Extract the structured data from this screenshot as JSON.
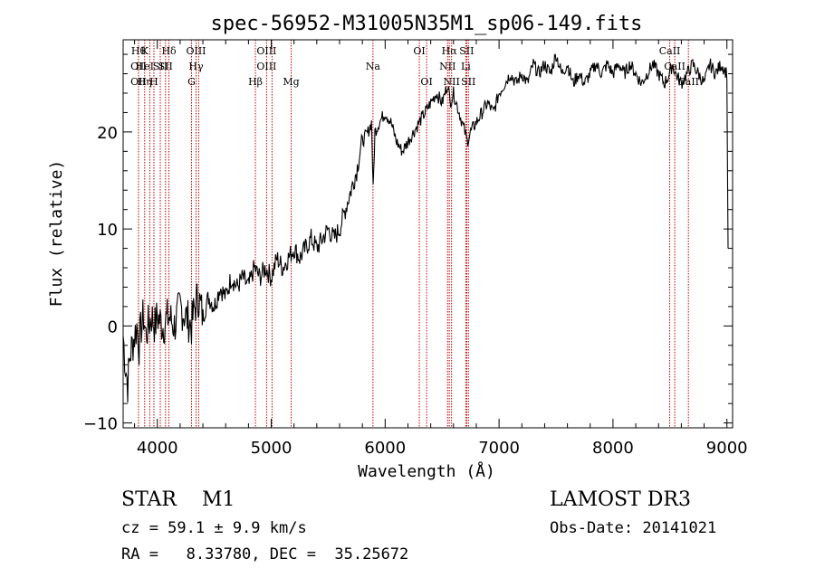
{
  "colors": {
    "spectrum": "#000000",
    "line_markers": "#c00000",
    "axes": "#000000"
  },
  "chart_data": {
    "type": "line",
    "title": "spec-56952-M31005N35M1_sp06-149.fits",
    "xlabel": "Wavelength (Å)",
    "ylabel": "Flux (relative)",
    "xlim": [
      3700,
      9050
    ],
    "ylim": [
      -10.5,
      29.5
    ],
    "xticks": [
      4000,
      5000,
      6000,
      7000,
      8000,
      9000
    ],
    "yticks": [
      -10,
      0,
      10,
      20
    ],
    "grid": false,
    "series": [
      {
        "x": [
          3700,
          3720,
          3740,
          3760,
          3780,
          3800,
          3820,
          3840,
          3860,
          3880,
          3900,
          3920,
          3950,
          3980,
          4000,
          4050,
          4100,
          4150,
          4200,
          4250,
          4300,
          4330,
          4360,
          4400,
          4450,
          4500,
          4550,
          4600,
          4650,
          4700,
          4750,
          4800,
          4850,
          4900,
          4950,
          5000,
          5050,
          5100,
          5150,
          5200,
          5250,
          5300,
          5350,
          5400,
          5450,
          5500,
          5550,
          5600,
          5650,
          5700,
          5750,
          5780,
          5800,
          5850,
          5880,
          5895,
          5910,
          5950,
          6000,
          6050,
          6100,
          6150,
          6200,
          6250,
          6300,
          6350,
          6400,
          6450,
          6500,
          6550,
          6570,
          6600,
          6650,
          6700,
          6720,
          6750,
          6800,
          6850,
          6900,
          6950,
          7000,
          7050,
          7100,
          7150,
          7200,
          7250,
          7300,
          7350,
          7400,
          7450,
          7500,
          7550,
          7600,
          7650,
          7700,
          7750,
          7800,
          7850,
          7900,
          7950,
          8000,
          8050,
          8100,
          8150,
          8200,
          8250,
          8300,
          8350,
          8400,
          8450,
          8500,
          8520,
          8550,
          8600,
          8650,
          8700,
          8750,
          8800,
          8850,
          8900,
          8950,
          9000,
          9010
        ],
        "y": [
          -1,
          -4,
          -6,
          -3,
          -2,
          -1,
          0,
          -2,
          0,
          1,
          -1,
          0,
          1,
          0,
          1,
          0,
          1,
          0,
          2,
          1,
          0,
          2,
          3,
          1,
          3,
          2,
          4,
          3,
          5,
          4,
          5,
          4,
          6,
          5,
          6,
          5,
          7,
          6,
          7,
          8,
          7,
          8,
          9,
          8,
          9,
          10,
          9,
          10,
          12,
          14,
          16,
          18,
          19,
          20,
          21,
          14,
          20,
          21,
          22,
          21,
          19,
          18,
          19,
          20,
          21,
          22,
          23,
          24,
          23,
          25,
          23,
          24,
          22,
          20,
          19,
          20,
          21,
          22,
          23,
          22,
          24,
          25,
          26,
          25,
          26,
          25,
          27,
          26,
          27,
          26,
          28,
          26,
          27,
          25,
          26,
          25,
          26,
          27,
          26,
          27,
          26,
          27,
          26,
          27,
          26,
          25,
          26,
          27,
          26,
          25,
          26,
          27,
          26,
          25,
          26,
          27,
          26,
          25,
          27,
          26,
          27,
          26,
          8
        ]
      }
    ],
    "lines": [
      {
        "x": 3835,
        "labels": [
          "Hθ",
          "OII",
          "OII"
        ]
      },
      {
        "x": 3889,
        "labels": [
          "K",
          "HeI",
          "Hη"
        ]
      },
      {
        "x": 3934,
        "labels": [
          "",
          "",
          ""
        ]
      },
      {
        "x": 3970,
        "labels": [
          "",
          "",
          "H"
        ]
      },
      {
        "x": 4026,
        "labels": [
          "",
          "SII",
          ""
        ]
      },
      {
        "x": 4072,
        "labels": [
          "",
          "SII",
          ""
        ]
      },
      {
        "x": 4102,
        "labels": [
          "Hδ",
          "",
          ""
        ]
      },
      {
        "x": 4300,
        "labels": [
          "",
          "",
          "G"
        ]
      },
      {
        "x": 4340,
        "labels": [
          "OIII",
          "Hγ",
          ""
        ]
      },
      {
        "x": 4363,
        "labels": [
          "",
          "",
          ""
        ]
      },
      {
        "x": 4861,
        "labels": [
          "",
          "",
          "Hβ"
        ]
      },
      {
        "x": 4959,
        "labels": [
          "OIII",
          "OIII",
          ""
        ]
      },
      {
        "x": 5007,
        "labels": [
          "",
          "",
          ""
        ]
      },
      {
        "x": 5175,
        "labels": [
          "",
          "",
          "Mg"
        ]
      },
      {
        "x": 5893,
        "labels": [
          "",
          "Na",
          ""
        ]
      },
      {
        "x": 6300,
        "labels": [
          "OI",
          "",
          ""
        ]
      },
      {
        "x": 6364,
        "labels": [
          "",
          "",
          "OI"
        ]
      },
      {
        "x": 6548,
        "labels": [
          "",
          "NII",
          ""
        ]
      },
      {
        "x": 6563,
        "labels": [
          "Hα",
          "",
          ""
        ]
      },
      {
        "x": 6583,
        "labels": [
          "",
          "",
          "NII"
        ]
      },
      {
        "x": 6708,
        "labels": [
          "",
          "Li",
          ""
        ]
      },
      {
        "x": 6716,
        "labels": [
          "SII",
          "",
          ""
        ]
      },
      {
        "x": 6731,
        "labels": [
          "",
          "",
          "SII"
        ]
      },
      {
        "x": 8498,
        "labels": [
          "CaII",
          "",
          ""
        ]
      },
      {
        "x": 8542,
        "labels": [
          "",
          "CaII",
          ""
        ]
      },
      {
        "x": 8662,
        "labels": [
          "",
          "",
          "CaII"
        ]
      }
    ]
  },
  "footer": {
    "object": "STAR    M1",
    "survey": "LAMOST DR3",
    "cz": "cz = 59.1 ± 9.9 km/s",
    "obs_date": "Obs-Date: 20141021",
    "coords": "RA =   8.33780, DEC =  35.25672"
  }
}
